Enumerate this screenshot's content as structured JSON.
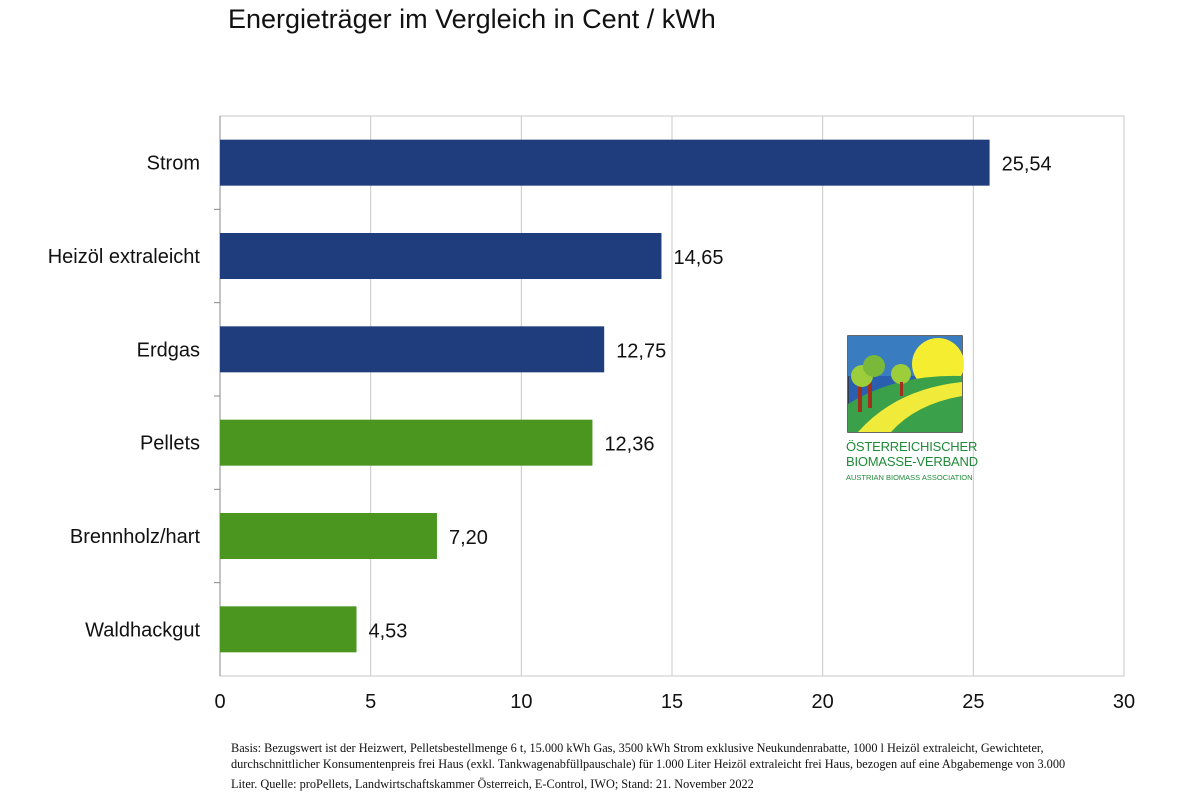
{
  "chart_data": {
    "type": "bar",
    "orientation": "horizontal",
    "title": "Energieträger im Vergleich in Cent / kWh",
    "categories": [
      "Strom",
      "Heizöl extraleicht",
      "Erdgas",
      "Pellets",
      "Brennholz/hart",
      "Waldhackgut"
    ],
    "values": [
      25.54,
      14.65,
      12.75,
      12.36,
      7.2,
      4.53
    ],
    "data_labels": [
      "25,54",
      "14,65",
      "12,75",
      "12,36",
      "7,20",
      "4,53"
    ],
    "bar_colors": [
      "#1f3d7c",
      "#1f3d7c",
      "#1f3d7c",
      "#4b961f",
      "#4b961f",
      "#4b961f"
    ],
    "xlim": [
      0,
      30
    ],
    "xticks": [
      "0",
      "5",
      "10",
      "15",
      "20",
      "25",
      "30"
    ],
    "xlabel": "",
    "ylabel": "",
    "grid": "vertical",
    "legend": "none"
  },
  "logo": {
    "line1": "Österreichischer",
    "line2": "Biomasse-Verband",
    "line3": "Austrian Biomass Association"
  },
  "footnote": {
    "line1": "Basis: Bezugswert ist der Heizwert, Pelletsbestellmenge 6 t, 15.000 kWh Gas, 3500 kWh Strom exklusive Neukundenrabatte, 1000 l Heizöl extraleicht, Gewichteter,",
    "line2": "durchschnittlicher Konsumentenpreis frei Haus (exkl. Tankwagenabfüllpauschale) für 1.000 Liter Heizöl extraleicht frei Haus, bezogen auf eine Abgabemenge von 3.000",
    "line3": "Liter. Quelle: proPellets, Landwirtschaftskammer Österreich, E-Control, IWO; Stand: 21. November 2022"
  }
}
